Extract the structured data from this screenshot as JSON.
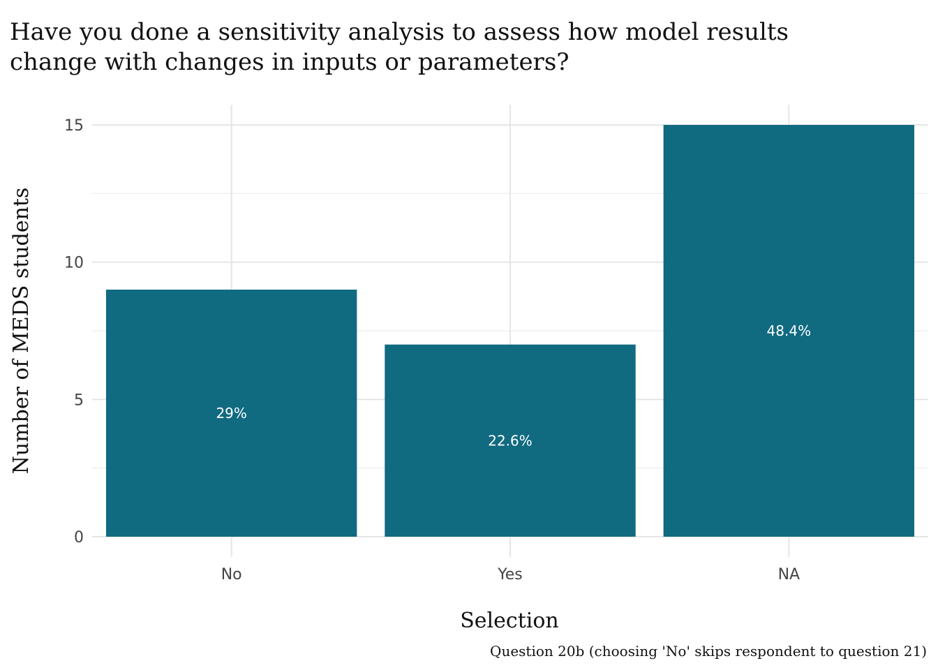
{
  "chart_data": {
    "type": "bar",
    "title_lines": [
      "Have you done a sensitivity analysis to assess how model results",
      "change with changes in inputs or parameters?"
    ],
    "xlabel": "Selection",
    "ylabel": "Number of MEDS students",
    "caption": "Question 20b (choosing 'No' skips respondent to question 21)",
    "categories": [
      "No",
      "Yes",
      "NA"
    ],
    "values": [
      9,
      7,
      15
    ],
    "data_labels": [
      "29%",
      "22.6%",
      "48.4%"
    ],
    "ylim": [
      0,
      15
    ],
    "yticks": [
      0,
      5,
      10,
      15
    ],
    "yticks_minor": [
      2.5,
      7.5,
      12.5
    ],
    "grid": true,
    "legend": "none",
    "colors": {
      "bar": "#106a80",
      "bar_label": "#ffffff"
    }
  }
}
